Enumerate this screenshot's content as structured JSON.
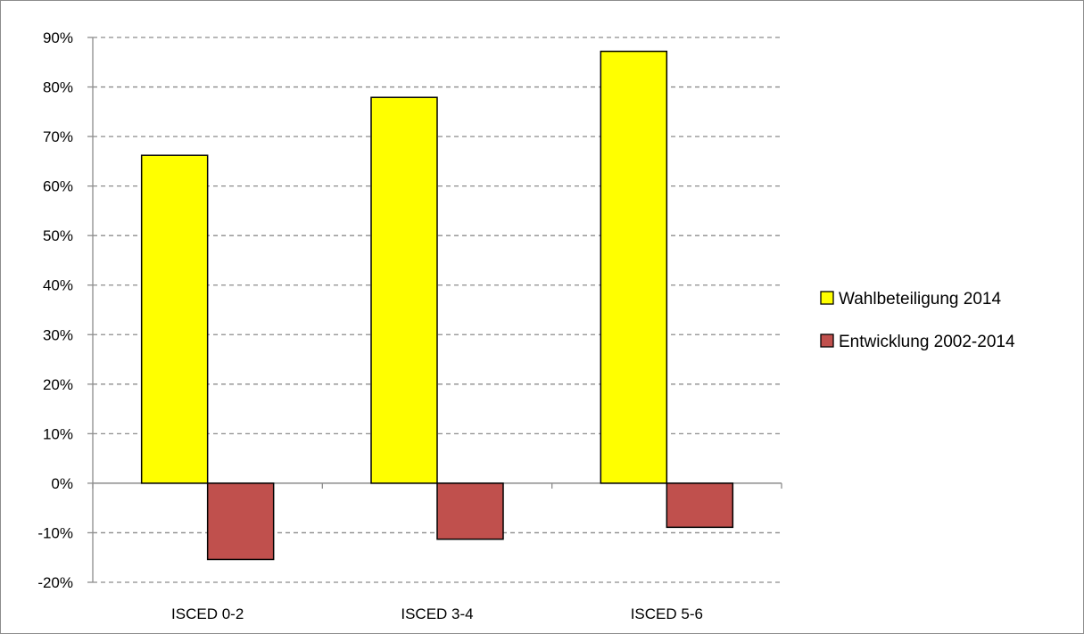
{
  "chart_data": {
    "type": "bar",
    "title": "",
    "xlabel": "",
    "ylabel": "",
    "categories": [
      "ISCED 0-2",
      "ISCED 3-4",
      "ISCED 5-6"
    ],
    "series": [
      {
        "name": "Wahlbeteiligung 2014",
        "values": [
          66.2,
          77.9,
          87.2
        ],
        "color": "#ffff00"
      },
      {
        "name": "Entwicklung 2002-2014",
        "values": [
          -15.4,
          -11.3,
          -8.9
        ],
        "color": "#c0504d"
      }
    ],
    "ylim": [
      -20,
      90
    ],
    "yticks": [
      90,
      80,
      70,
      60,
      50,
      40,
      30,
      20,
      10,
      0,
      -10,
      -20
    ],
    "ytick_labels": [
      "90%",
      "80%",
      "70%",
      "60%",
      "50%",
      "40%",
      "30%",
      "20%",
      "10%",
      "0%",
      "-10%",
      "-20%"
    ],
    "grid": "dashed horizontal",
    "legend_position": "right"
  }
}
